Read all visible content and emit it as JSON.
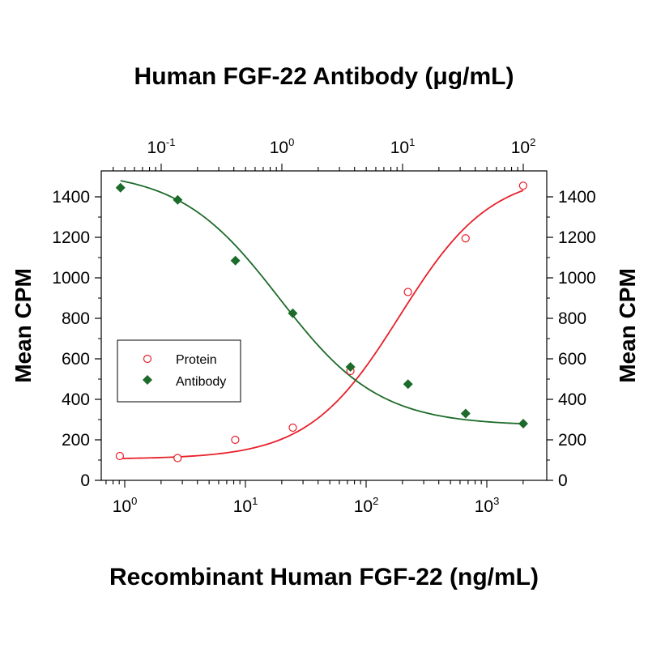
{
  "chart_data": {
    "type": "scatter",
    "top_axis_title": "Human FGF-22 Antibody (μg/mL)",
    "bottom_axis_title": "Recombinant Human FGF-22 (ng/mL)",
    "left_axis_title": "Mean CPM",
    "right_axis_title": "Mean CPM",
    "y_range": [
      0,
      1500
    ],
    "y_ticks": [
      "0",
      "200",
      "400",
      "600",
      "800",
      "1000",
      "1200",
      "1400"
    ],
    "x_bottom": {
      "scale": "log",
      "range": [
        0.6,
        2500
      ],
      "ticks": [
        {
          "value": 1,
          "base": "10",
          "exp": "0"
        },
        {
          "value": 10,
          "base": "10",
          "exp": "1"
        },
        {
          "value": 100,
          "base": "10",
          "exp": "2"
        },
        {
          "value": 1000,
          "base": "10",
          "exp": "3"
        }
      ]
    },
    "x_top": {
      "scale": "log",
      "range": [
        0.036,
        150
      ],
      "ticks": [
        {
          "value": 0.1,
          "base": "10",
          "exp": "-1"
        },
        {
          "value": 1,
          "base": "10",
          "exp": "0"
        },
        {
          "value": 10,
          "base": "10",
          "exp": "1"
        },
        {
          "value": 100,
          "base": "10",
          "exp": "2"
        }
      ]
    },
    "series": [
      {
        "name": "Protein",
        "axis": "bottom",
        "marker": "open-circle",
        "color": "#e8202a",
        "x": [
          0.91,
          2.74,
          8.23,
          24.7,
          74.1,
          222,
          667,
          2000
        ],
        "y": [
          120,
          110,
          200,
          260,
          540,
          930,
          1195,
          1455
        ],
        "fit": {
          "bottom": 105,
          "top": 1520,
          "ec50": 190,
          "hill": 1.15
        }
      },
      {
        "name": "Antibody",
        "axis": "top",
        "marker": "filled-diamond",
        "color": "#1d6b2a",
        "x": [
          0.046,
          0.137,
          0.412,
          1.23,
          3.7,
          11.1,
          33.3,
          100
        ],
        "y": [
          1445,
          1385,
          1085,
          825,
          560,
          475,
          330,
          280
        ],
        "fit": {
          "bottom": 270,
          "top": 1530,
          "ec50": 0.95,
          "hill": 1.05
        }
      }
    ],
    "legend": {
      "position": "left-middle",
      "items": [
        {
          "label": "Protein",
          "marker": "open-circle",
          "color": "#e8202a"
        },
        {
          "label": "Antibody",
          "marker": "filled-diamond",
          "color": "#1d6b2a"
        }
      ]
    },
    "grid": false
  }
}
